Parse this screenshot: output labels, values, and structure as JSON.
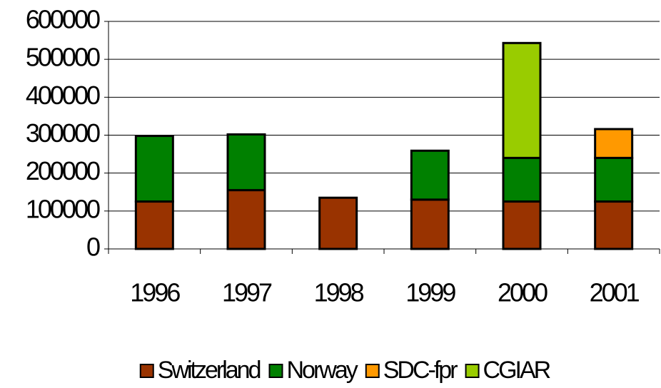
{
  "chart_data": {
    "type": "stacked_bar",
    "categories": [
      "1996",
      "1997",
      "1998",
      "1999",
      "2000",
      "2001"
    ],
    "series": [
      {
        "name": "Switzerland",
        "color": "#993300",
        "values": [
          125000,
          155000,
          135000,
          130000,
          125000,
          125000
        ]
      },
      {
        "name": "Norway",
        "color": "#008000",
        "values": [
          173000,
          147000,
          null,
          129000,
          115000,
          115000
        ]
      },
      {
        "name": "SDC-fpr",
        "color": "#ff9900",
        "values": [
          null,
          null,
          null,
          null,
          null,
          76000
        ]
      },
      {
        "name": "CGIAR",
        "color": "#99cc00",
        "values": [
          null,
          null,
          null,
          null,
          303000,
          null
        ]
      }
    ],
    "ylim": [
      0,
      600000
    ],
    "yticks": [
      0,
      100000,
      200000,
      300000,
      400000,
      500000,
      600000
    ],
    "grid": true,
    "legend": "bottom"
  }
}
